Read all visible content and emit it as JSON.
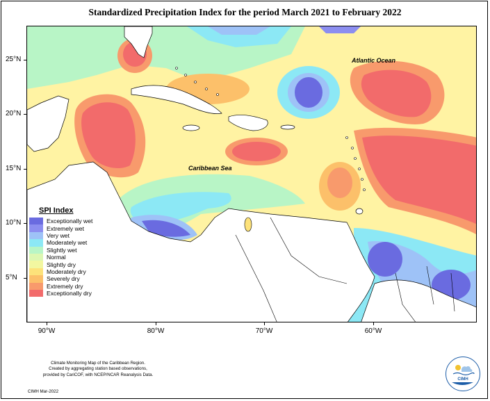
{
  "title": "Standardized Precipitation Index for the period March 2021 to February 2022",
  "latitude_labels": [
    "25°N",
    "20°N",
    "15°N",
    "10°N",
    "5°N"
  ],
  "longitude_labels": [
    "90°W",
    "80°W",
    "70°W",
    "60°W"
  ],
  "map_labels": {
    "atlantic": "Atlantic Ocean",
    "caribbean": "Caribbean Sea"
  },
  "legend": {
    "title": "SPI Index",
    "items": [
      {
        "label": "Exceptionally wet",
        "color": "#6a6be0"
      },
      {
        "label": "Extremely wet",
        "color": "#8c8ef0"
      },
      {
        "label": "Very wet",
        "color": "#9ec2f7"
      },
      {
        "label": "Moderately wet",
        "color": "#8ce8f5"
      },
      {
        "label": "Slightly wet",
        "color": "#b8f5c6"
      },
      {
        "label": "Normal",
        "color": "#dcf7b2"
      },
      {
        "label": "Slightly dry",
        "color": "#f2f7a0"
      },
      {
        "label": "Moderately dry",
        "color": "#fde27a"
      },
      {
        "label": "Severely dry",
        "color": "#fcc06a"
      },
      {
        "label": "Extremely dry",
        "color": "#f89a6c"
      },
      {
        "label": "Exceptionally dry",
        "color": "#f26b6b"
      }
    ]
  },
  "credit": {
    "line1": "Climate Monitoring Map of the Caribbean Region.",
    "line2": "Created by aggregating station based observations,",
    "line3": "provided by CariCOF, with NCEP/NCAR Reanalysis Data.",
    "date": "CIMH Mar-2022"
  },
  "logo": {
    "text": "CIMH",
    "icon": "cimh-logo-icon"
  }
}
